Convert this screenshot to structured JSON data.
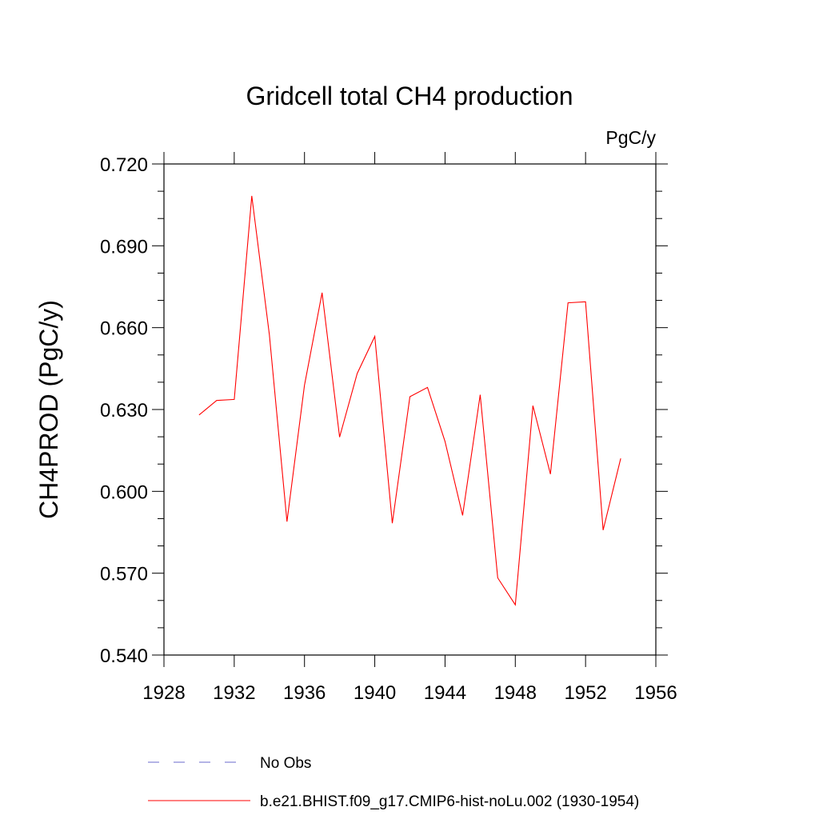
{
  "chart_data": {
    "type": "line",
    "title": "Gridcell total CH4 production",
    "units_label": "PgC/y",
    "ylabel": "CH4PROD  (PgC/y)",
    "xlabel": "",
    "xlim": [
      1928,
      1956
    ],
    "ylim": [
      0.54,
      0.72
    ],
    "x_ticks": [
      "1928",
      "1932",
      "1936",
      "1940",
      "1944",
      "1948",
      "1952",
      "1956"
    ],
    "y_ticks": [
      "0.540",
      "0.570",
      "0.600",
      "0.630",
      "0.660",
      "0.690",
      "0.720"
    ],
    "grid": false,
    "legend_position": "bottom",
    "series": [
      {
        "name": "b.e21.BHIST.f09_g17.CMIP6-hist-noLu.002 (1930-1954)",
        "color": "#ff0000",
        "style": "solid",
        "x": [
          1930,
          1931,
          1932,
          1933,
          1934,
          1935,
          1936,
          1937,
          1938,
          1939,
          1940,
          1941,
          1942,
          1943,
          1944,
          1945,
          1946,
          1947,
          1948,
          1949,
          1950,
          1951,
          1952,
          1953,
          1954
        ],
        "y": [
          0.628,
          0.6333,
          0.6337,
          0.7083,
          0.6574,
          0.5889,
          0.6389,
          0.6728,
          0.6199,
          0.6432,
          0.6568,
          0.5883,
          0.6347,
          0.6381,
          0.6183,
          0.5912,
          0.6354,
          0.5683,
          0.5584,
          0.6314,
          0.6063,
          0.6691,
          0.6695,
          0.5858,
          0.6121
        ]
      }
    ],
    "legend": [
      {
        "label": "No Obs",
        "color": "#6a6acd",
        "style": "dashed"
      },
      {
        "label": "b.e21.BHIST.f09_g17.CMIP6-hist-noLu.002 (1930-1954)",
        "color": "#ff0000",
        "style": "solid"
      }
    ]
  }
}
